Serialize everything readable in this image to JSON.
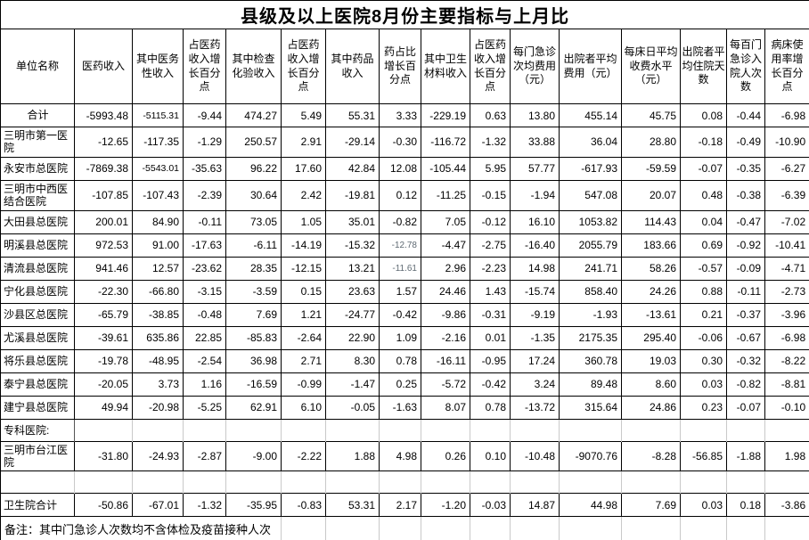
{
  "title": "县级及以上医院8月份主要指标与上月比",
  "note": "备注：其中门急诊人次数均不含体检及疫苗接种人次",
  "table": {
    "columns": [
      "单位名称",
      "医药收入",
      "其中医务性收入",
      "占医药收入增长百分点",
      "其中检查化验收入",
      "占医药收入增长百分点",
      "其中药品收入",
      "药占比增长百分点",
      "其中卫生材料收入",
      "占医药收入增长百分点",
      "每门急诊次均费用（元）",
      "出院者平均费用（元）",
      "每床日平均收费水平（元）",
      "出院者平均住院天数",
      "每百门急诊入院人次数",
      "病床使用率增长百分点"
    ],
    "rows": [
      {
        "name": "合计",
        "type": "data",
        "align": "center",
        "cell_styles": {
          "1": "shrink"
        },
        "values": [
          "-5993.48",
          "-5115.31",
          "-9.44",
          "474.27",
          "5.49",
          "55.31",
          "3.33",
          "-229.19",
          "0.63",
          "13.80",
          "455.14",
          "45.75",
          "0.08",
          "-0.44",
          "-6.98"
        ]
      },
      {
        "name": "三明市第一医院",
        "type": "data",
        "values": [
          "-12.65",
          "-117.35",
          "-1.29",
          "250.57",
          "2.91",
          "-29.14",
          "-0.30",
          "-116.72",
          "-1.32",
          "33.88",
          "36.04",
          "28.80",
          "-0.18",
          "-0.49",
          "-10.90"
        ]
      },
      {
        "name": "永安市总医院",
        "type": "data",
        "cell_styles": {
          "1": "shrink"
        },
        "values": [
          "-7869.38",
          "-5543.01",
          "-35.63",
          "96.22",
          "17.60",
          "42.84",
          "12.08",
          "-105.44",
          "5.95",
          "57.77",
          "-617.93",
          "-59.59",
          "-0.07",
          "-0.35",
          "-6.27"
        ]
      },
      {
        "name": "三明市中西医结合医院",
        "type": "data",
        "values": [
          "-107.85",
          "-107.43",
          "-2.39",
          "30.64",
          "2.42",
          "-19.81",
          "0.12",
          "-11.25",
          "-0.15",
          "-1.94",
          "547.08",
          "20.07",
          "0.48",
          "-0.38",
          "-6.39"
        ]
      },
      {
        "name": "大田县总医院",
        "type": "data",
        "values": [
          "200.01",
          "84.90",
          "-0.11",
          "73.05",
          "1.05",
          "35.01",
          "-0.82",
          "7.05",
          "-0.12",
          "16.10",
          "1053.82",
          "114.43",
          "0.04",
          "-0.47",
          "-7.02"
        ]
      },
      {
        "name": "明溪县总医院",
        "type": "data",
        "cell_styles": {
          "6": "gray"
        },
        "values": [
          "972.53",
          "91.00",
          "-17.63",
          "-6.11",
          "-14.19",
          "-15.32",
          "-12.78",
          "-4.47",
          "-2.75",
          "-16.40",
          "2055.79",
          "183.66",
          "0.69",
          "-0.92",
          "-10.41"
        ]
      },
      {
        "name": "清流县总医院",
        "type": "data",
        "cell_styles": {
          "6": "gray"
        },
        "values": [
          "941.46",
          "12.57",
          "-23.62",
          "28.35",
          "-12.15",
          "13.21",
          "-11.61",
          "2.96",
          "-2.23",
          "14.98",
          "241.71",
          "58.26",
          "-0.57",
          "-0.09",
          "-4.71"
        ]
      },
      {
        "name": "宁化县总医院",
        "type": "data",
        "values": [
          "-22.30",
          "-66.80",
          "-3.15",
          "-3.59",
          "0.15",
          "23.63",
          "1.57",
          "24.46",
          "1.43",
          "-15.74",
          "858.40",
          "24.26",
          "0.88",
          "-0.11",
          "-2.73"
        ]
      },
      {
        "name": "沙县区总医院",
        "type": "data",
        "values": [
          "-65.79",
          "-38.85",
          "-0.48",
          "7.69",
          "1.21",
          "-24.77",
          "-0.42",
          "-9.86",
          "-0.31",
          "-9.19",
          "-1.93",
          "-13.61",
          "0.21",
          "-0.37",
          "-3.96"
        ]
      },
      {
        "name": "尤溪县总医院",
        "type": "data",
        "values": [
          "-39.61",
          "635.86",
          "22.85",
          "-85.83",
          "-2.64",
          "22.90",
          "1.09",
          "-2.16",
          "0.01",
          "-1.35",
          "2175.35",
          "295.40",
          "-0.06",
          "-0.67",
          "-6.98"
        ]
      },
      {
        "name": "将乐县总医院",
        "type": "data",
        "values": [
          "-19.78",
          "-48.95",
          "-2.54",
          "36.98",
          "2.71",
          "8.30",
          "0.78",
          "-16.11",
          "-0.95",
          "17.24",
          "360.78",
          "19.03",
          "0.30",
          "-0.32",
          "-8.22"
        ]
      },
      {
        "name": "泰宁县总医院",
        "type": "data",
        "values": [
          "-20.05",
          "3.73",
          "1.16",
          "-16.59",
          "-0.99",
          "-1.47",
          "0.25",
          "-5.72",
          "-0.42",
          "3.24",
          "89.48",
          "8.60",
          "0.03",
          "-0.82",
          "-8.81"
        ]
      },
      {
        "name": "建宁县总医院",
        "type": "data",
        "values": [
          "49.94",
          "-20.98",
          "-5.25",
          "62.91",
          "6.10",
          "-0.05",
          "-1.63",
          "8.07",
          "0.78",
          "-13.72",
          "315.64",
          "24.86",
          "0.23",
          "-0.07",
          "-0.10"
        ]
      },
      {
        "name": "专科医院:",
        "type": "plain",
        "dark_first_divider": true,
        "values": []
      },
      {
        "name": "三明市台江医院",
        "type": "data",
        "values": [
          "-31.80",
          "-24.93",
          "-2.87",
          "-9.00",
          "-2.22",
          "1.88",
          "4.98",
          "0.26",
          "0.10",
          "-10.48",
          "-9070.76",
          "-8.28",
          "-56.85",
          "-1.88",
          "1.98"
        ]
      },
      {
        "name": "",
        "type": "plain",
        "values": []
      },
      {
        "name": "卫生院合计",
        "type": "data",
        "values": [
          "-50.86",
          "-67.01",
          "-1.32",
          "-35.95",
          "-0.83",
          "53.31",
          "2.17",
          "-1.20",
          "-0.03",
          "14.87",
          "44.98",
          "7.69",
          "0.03",
          "0.18",
          "-3.86"
        ]
      }
    ]
  }
}
